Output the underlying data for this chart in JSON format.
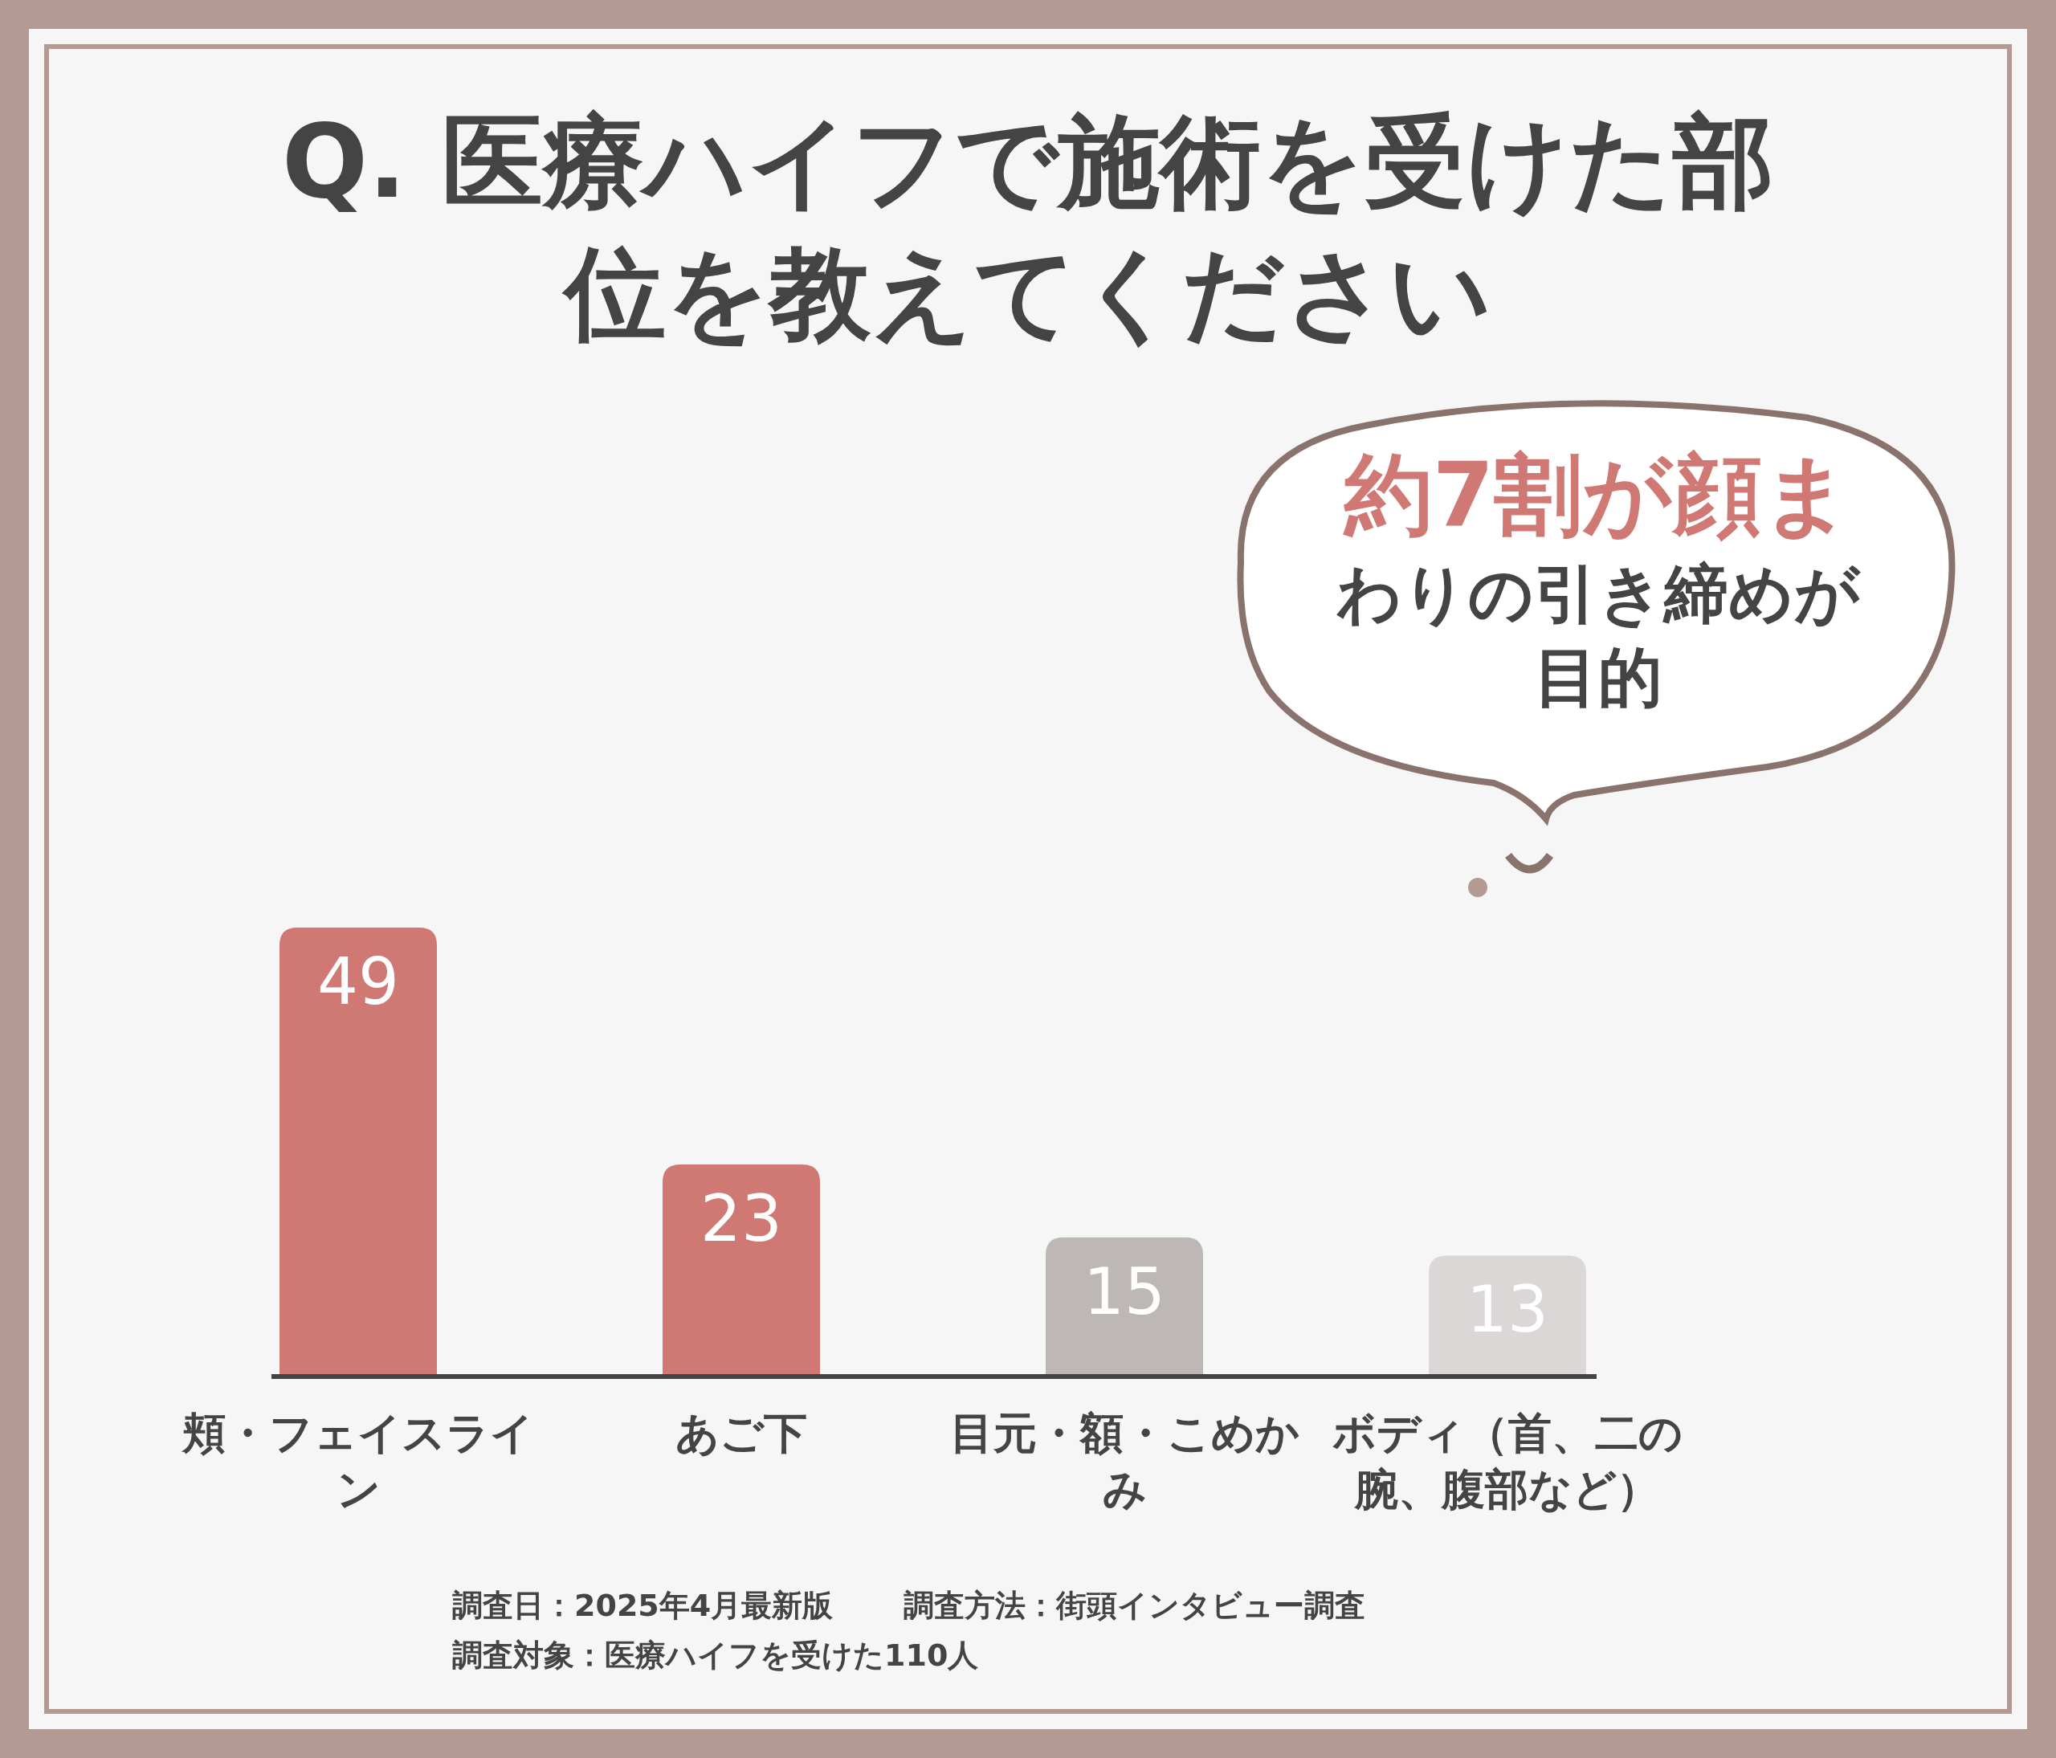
{
  "chart_data": {
    "type": "bar",
    "title": "Q. 医療ハイフで施術を受けた部位を教えてください",
    "categories": [
      "頬・フェイスライン",
      "あご下",
      "目元・額・こめかみ",
      "ボディ（首、二の腕、腹部など）"
    ],
    "values": [
      49,
      23,
      15,
      13
    ],
    "colors": [
      "#d07873",
      "#d07873",
      "#bdb8b6",
      "#dad7d6"
    ],
    "data_labels": true,
    "annotations": [
      "約7割が顔まわりの引き締めが目的",
      "調査日：2025年4月最新版",
      "調査方法：街頭インタビュー調査",
      "調査対象：医療ハイフを受けた110人"
    ]
  }
}
